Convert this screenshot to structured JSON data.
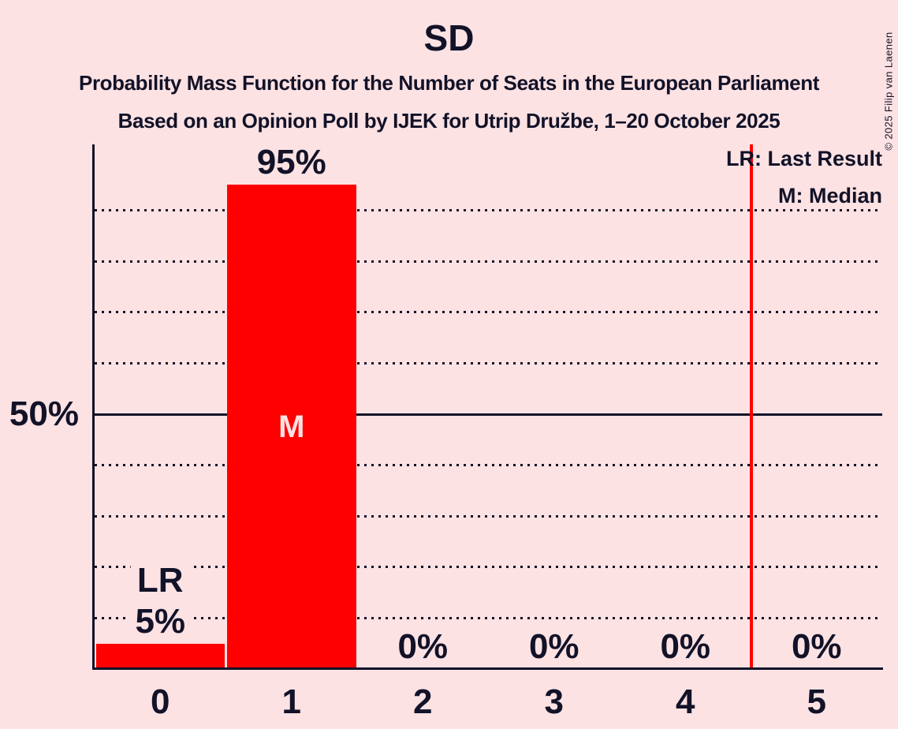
{
  "title": "SD",
  "subtitles": {
    "line1": "Probability Mass Function for the Number of Seats in the European Parliament",
    "line2": "Based on an Opinion Poll by IJEK for Utrip Družbe, 1–20 October 2025"
  },
  "copyright": "© 2025 Filip van Laenen",
  "legend": {
    "lr_label": "LR: Last Result",
    "m_label": "M: Median"
  },
  "y_axis_label": "50%",
  "colors": {
    "background": "#fce2e3",
    "bar": "#ff0000",
    "threshold_line": "#ff0000",
    "text": "#121228",
    "bar_annotation_text": "#fce2e3"
  },
  "chart_data": {
    "type": "bar",
    "title": "SD",
    "categories": [
      "0",
      "1",
      "2",
      "3",
      "4",
      "5"
    ],
    "values": [
      5,
      95,
      0,
      0,
      0,
      0
    ],
    "value_labels": [
      "5%",
      "95%",
      "0%",
      "0%",
      "0%",
      "0%"
    ],
    "annotations": [
      {
        "seat_index": 0,
        "text": "LR",
        "position": "above"
      },
      {
        "seat_index": 1,
        "text": "M",
        "position": "inside"
      }
    ],
    "median_seat": 1,
    "last_result_seat": 0,
    "threshold_line_x": 4.5,
    "xlabel": "",
    "ylabel": "",
    "ylim": [
      0,
      100
    ],
    "y_gridlines_dotted": [
      10,
      20,
      30,
      40,
      60,
      70,
      80,
      90
    ],
    "y_gridlines_solid": [
      50
    ],
    "legend_position": "top-right",
    "grid": true
  }
}
